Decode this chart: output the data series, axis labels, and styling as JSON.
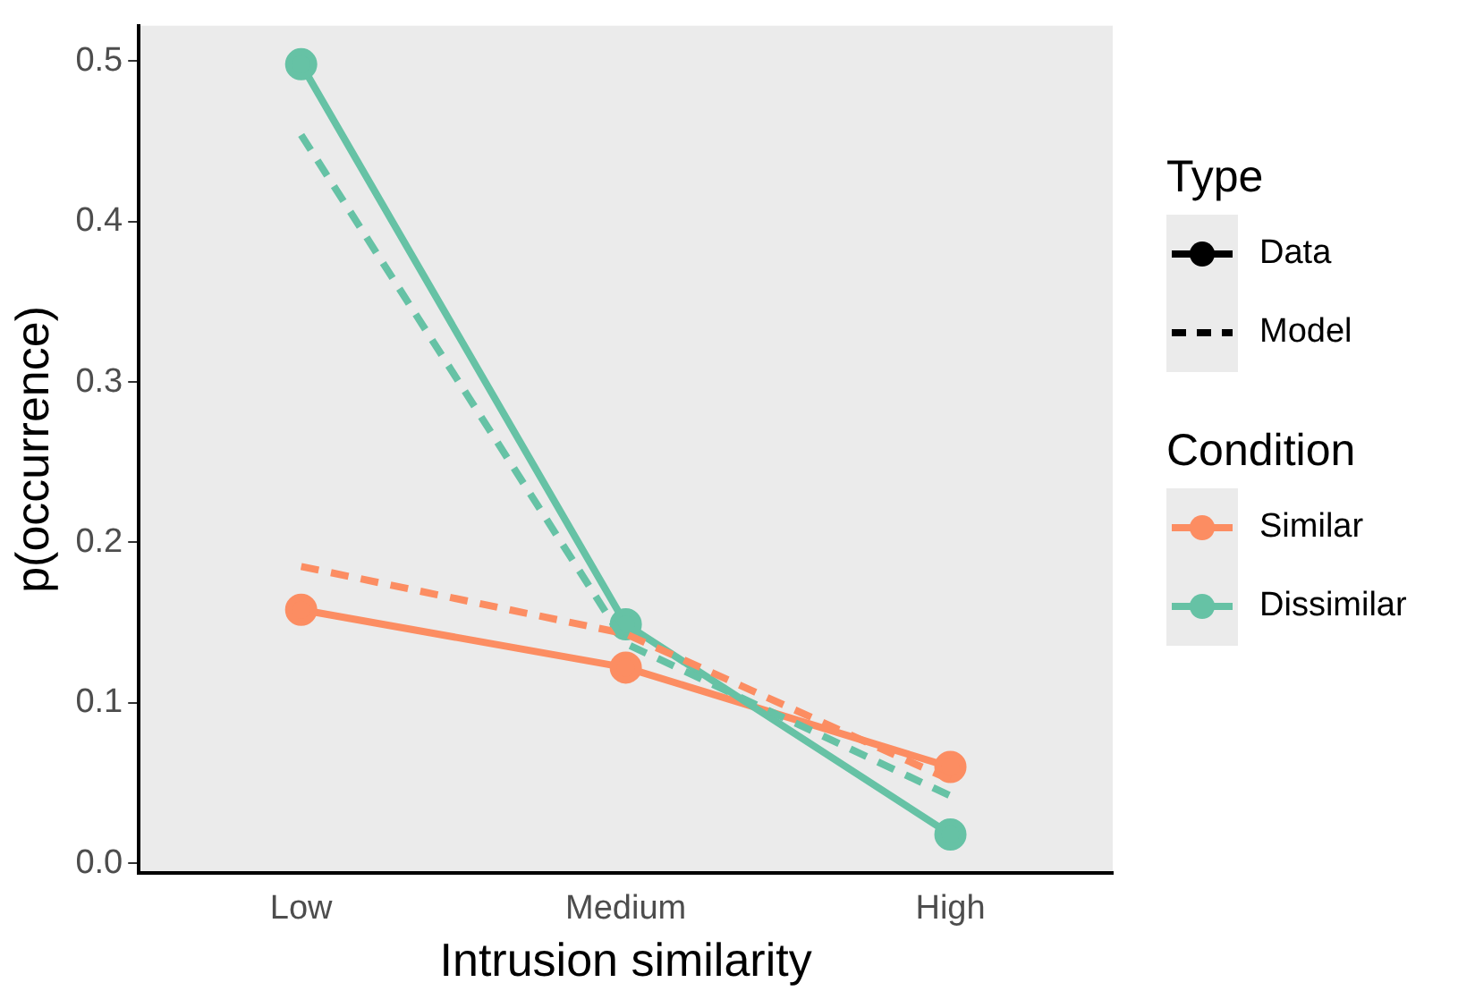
{
  "chart_data": {
    "type": "line",
    "xlabel": "Intrusion similarity",
    "ylabel": "p(occurrence)",
    "categories": [
      "Low",
      "Medium",
      "High"
    ],
    "ylim": [
      -0.006,
      0.522
    ],
    "yticks": [
      {
        "value": 0,
        "label": "0.0"
      },
      {
        "value": 0.1,
        "label": "0.1"
      },
      {
        "value": 0.2,
        "label": "0.2"
      },
      {
        "value": 0.3,
        "label": "0.3"
      },
      {
        "value": 0.4,
        "label": "0.4"
      },
      {
        "value": 0.5,
        "label": "0.5"
      }
    ],
    "grid": false,
    "legend": "right",
    "legend_title": "Condition",
    "annotations": [
      "Type",
      "Data",
      "Model"
    ],
    "series": [
      {
        "name": "Similar",
        "color": "#fc8d62",
        "values": [
          0.158,
          0.122,
          0.06
        ],
        "marker": "circle",
        "line_style": "solid"
      },
      {
        "name": "Dissimilar",
        "color": "#66c2a5",
        "values": [
          0.498,
          0.149,
          0.018
        ],
        "marker": "circle",
        "line_style": "solid"
      },
      {
        "color": "#fc8d62",
        "values": [
          0.185,
          0.143,
          0.052
        ],
        "marker": "none",
        "line_style": "dashed"
      },
      {
        "color": "#66c2a5",
        "values": [
          0.454,
          0.137,
          0.042
        ],
        "marker": "none",
        "line_style": "dashed"
      }
    ]
  }
}
